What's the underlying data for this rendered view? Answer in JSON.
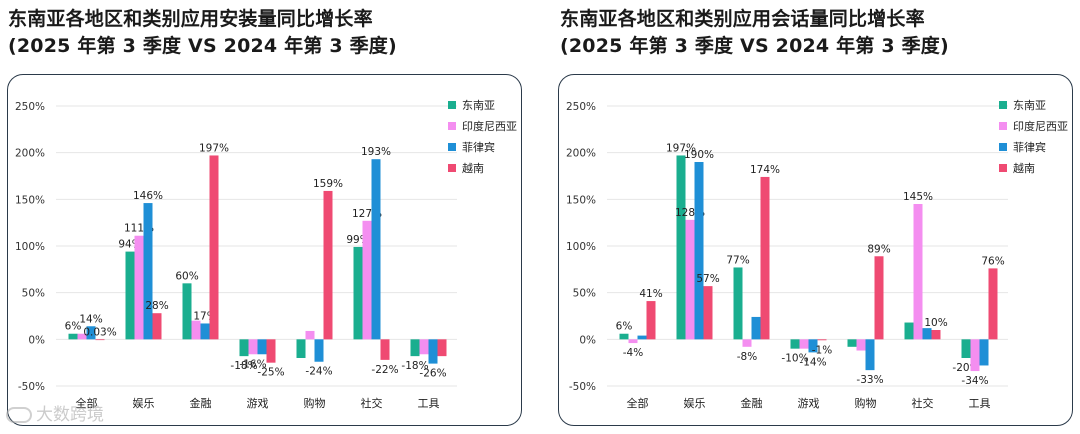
{
  "colors": {
    "series": [
      "#1aae8f",
      "#f48ef0",
      "#1f8fd6",
      "#ef4a72"
    ],
    "grid": "#e6e6e6",
    "card_border": "#2b3a4a"
  },
  "watermark": {
    "text": "大数跨境"
  },
  "chart_data": [
    {
      "type": "bar",
      "title_line1": "东南亚各地区和类别应用安装量同比增长率",
      "title_line2": "(2025 年第 3 季度 VS 2024 年第 3 季度)",
      "categories": [
        "全部",
        "娱乐",
        "金融",
        "游戏",
        "购物",
        "社交",
        "工具"
      ],
      "ylim": [
        -50,
        250
      ],
      "yticks": [
        -50,
        0,
        50,
        100,
        150,
        200,
        250
      ],
      "ytick_labels": [
        "-50%",
        "0%",
        "50%",
        "100%",
        "150%",
        "200%",
        "250%"
      ],
      "legend_position": "top-right",
      "series": [
        {
          "name": "东南亚",
          "values": [
            6,
            94,
            60,
            -18,
            -20,
            99,
            -18
          ],
          "labels": [
            "6%",
            "94%",
            "60%",
            "-18%",
            "",
            "99%",
            "-18%"
          ]
        },
        {
          "name": "印度尼西亚",
          "values": [
            6,
            111,
            20,
            -16,
            9,
            127,
            -16
          ],
          "labels": [
            "",
            "111%",
            "",
            "-16%",
            "",
            "127%",
            ""
          ]
        },
        {
          "name": "菲律宾",
          "values": [
            14,
            146,
            17,
            -16,
            -24,
            193,
            -26
          ],
          "labels": [
            "14%",
            "146%",
            "17%",
            "",
            "-24%",
            "193%",
            "-26%"
          ]
        },
        {
          "name": "越南",
          "values": [
            0.03,
            28,
            197,
            -25,
            159,
            -22,
            -18
          ],
          "labels": [
            "0.03%",
            "28%",
            "197%",
            "-25%",
            "159%",
            "-22%",
            ""
          ]
        }
      ]
    },
    {
      "type": "bar",
      "title_line1": "东南亚各地区和类别应用会话量同比增长率",
      "title_line2": "(2025 年第 3 季度 VS 2024 年第 3 季度)",
      "categories": [
        "全部",
        "娱乐",
        "金融",
        "游戏",
        "购物",
        "社交",
        "工具"
      ],
      "ylim": [
        -50,
        250
      ],
      "yticks": [
        -50,
        0,
        50,
        100,
        150,
        200,
        250
      ],
      "ytick_labels": [
        "-50%",
        "0%",
        "50%",
        "100%",
        "150%",
        "200%",
        "250%"
      ],
      "legend_position": "top-right",
      "series": [
        {
          "name": "东南亚",
          "values": [
            6,
            197,
            77,
            -10,
            -8,
            18,
            -20
          ],
          "labels": [
            "6%",
            "197%",
            "77%",
            "-10%",
            "",
            "",
            "-20%"
          ]
        },
        {
          "name": "印度尼西亚",
          "values": [
            -4,
            128,
            -8,
            -10,
            -12,
            145,
            -34
          ],
          "labels": [
            "-4%",
            "128%",
            "-8%",
            "",
            "",
            "145%",
            "-34%"
          ]
        },
        {
          "name": "菲律宾",
          "values": [
            4,
            190,
            24,
            -14,
            -33,
            12,
            -28
          ],
          "labels": [
            "",
            "190%",
            "",
            "-14%",
            "-33%",
            "",
            ""
          ]
        },
        {
          "name": "越南",
          "values": [
            41,
            57,
            174,
            -1,
            89,
            10,
            76
          ],
          "labels": [
            "41%",
            "57%",
            "174%",
            "-1%",
            "89%",
            "10%",
            "76%"
          ]
        }
      ]
    }
  ]
}
